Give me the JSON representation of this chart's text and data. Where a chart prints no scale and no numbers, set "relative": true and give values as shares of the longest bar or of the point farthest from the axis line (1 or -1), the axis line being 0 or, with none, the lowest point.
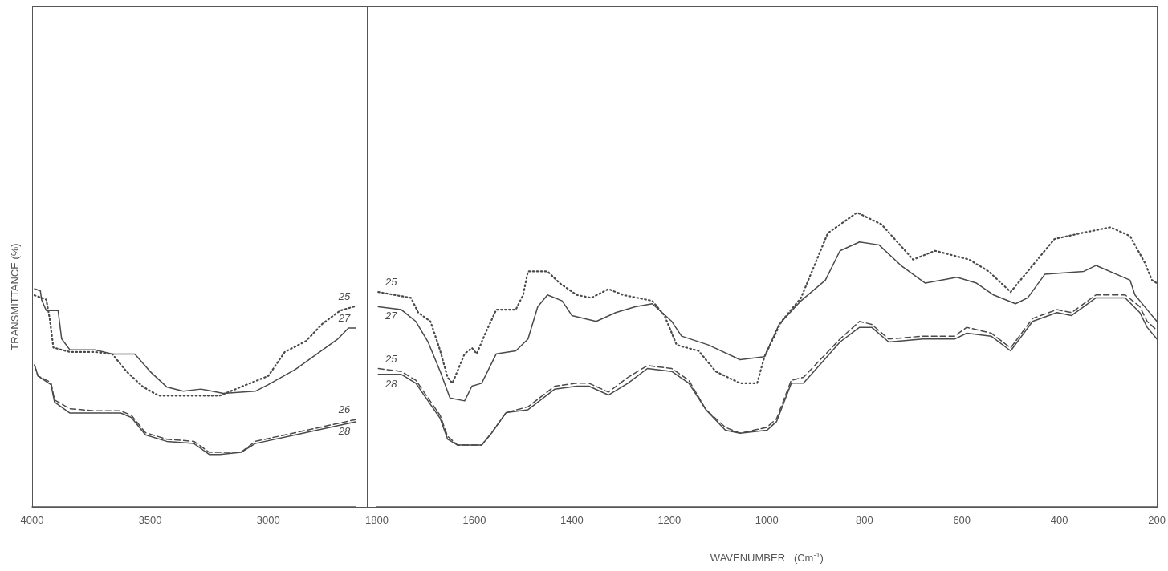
{
  "chart_data": [
    {
      "type": "line",
      "relative": true,
      "ylabel": "TRANSMITTANCE (%)",
      "xlim": [
        4000,
        2630
      ],
      "xticks": [
        4000,
        3500,
        3000
      ],
      "series": [
        {
          "name": "25",
          "color": "#4a4a4a",
          "line_style": "dotted",
          "x": [
            3990,
            3940,
            3925,
            3910,
            3840,
            3735,
            3660,
            3600,
            3530,
            3465,
            3340,
            3205,
            3115,
            3000,
            2930,
            2840,
            2770,
            2695,
            2630
          ],
          "values": [
            0.97,
            0.95,
            0.86,
            0.73,
            0.71,
            0.71,
            0.7,
            0.62,
            0.55,
            0.51,
            0.51,
            0.51,
            0.55,
            0.6,
            0.71,
            0.76,
            0.84,
            0.9,
            0.92
          ]
        },
        {
          "name": "27",
          "color": "#4a4a4a",
          "line_style": "solid",
          "x": [
            3990,
            3965,
            3960,
            3940,
            3890,
            3875,
            3840,
            3735,
            3660,
            3565,
            3500,
            3430,
            3360,
            3285,
            3190,
            3055,
            3000,
            2885,
            2795,
            2705,
            2660,
            2630
          ],
          "values": [
            1.0,
            0.99,
            0.95,
            0.9,
            0.9,
            0.77,
            0.72,
            0.72,
            0.7,
            0.7,
            0.62,
            0.55,
            0.53,
            0.54,
            0.52,
            0.53,
            0.56,
            0.63,
            0.7,
            0.77,
            0.82,
            0.82
          ]
        },
        {
          "name": "26",
          "color": "#4a4a4a",
          "line_style": "dashed",
          "x": [
            3990,
            3975,
            3920,
            3905,
            3840,
            3735,
            3625,
            3580,
            3520,
            3430,
            3315,
            3250,
            3205,
            3115,
            3055,
            2885,
            2630
          ],
          "values": [
            0.65,
            0.6,
            0.57,
            0.49,
            0.45,
            0.44,
            0.44,
            0.42,
            0.34,
            0.31,
            0.3,
            0.25,
            0.25,
            0.25,
            0.3,
            0.34,
            0.4
          ]
        },
        {
          "name": "28",
          "color": "#4a4a4a",
          "line_style": "solid",
          "x": [
            3990,
            3975,
            3920,
            3905,
            3840,
            3735,
            3625,
            3580,
            3520,
            3430,
            3315,
            3250,
            3205,
            3115,
            3055,
            2885,
            2630
          ],
          "values": [
            0.65,
            0.6,
            0.56,
            0.48,
            0.43,
            0.43,
            0.43,
            0.41,
            0.33,
            0.3,
            0.29,
            0.24,
            0.24,
            0.25,
            0.29,
            0.33,
            0.39
          ]
        }
      ]
    },
    {
      "type": "line",
      "relative": true,
      "xlabel": "WAVENUMBER   (Cm$^{-1}$)",
      "xlim": [
        1800,
        200
      ],
      "xticks": [
        1800,
        1600,
        1400,
        1200,
        1000,
        800,
        600,
        400,
        200
      ],
      "series": [
        {
          "name": "25",
          "color": "#4a4a4a",
          "line_style": "dotted",
          "x": [
            1797,
            1730,
            1715,
            1690,
            1670,
            1655,
            1645,
            1620,
            1605,
            1595,
            1580,
            1555,
            1515,
            1500,
            1490,
            1450,
            1425,
            1390,
            1360,
            1325,
            1295,
            1235,
            1210,
            1185,
            1140,
            1105,
            1055,
            1020,
            1005,
            970,
            930,
            875,
            815,
            765,
            700,
            655,
            585,
            545,
            500,
            465,
            410,
            355,
            295,
            255,
            225,
            210,
            200
          ],
          "values": [
            0.73,
            0.71,
            0.66,
            0.63,
            0.53,
            0.44,
            0.42,
            0.52,
            0.54,
            0.52,
            0.58,
            0.67,
            0.67,
            0.72,
            0.8,
            0.8,
            0.76,
            0.72,
            0.71,
            0.74,
            0.72,
            0.7,
            0.65,
            0.55,
            0.53,
            0.46,
            0.42,
            0.42,
            0.51,
            0.63,
            0.71,
            0.93,
            1.0,
            0.96,
            0.84,
            0.87,
            0.84,
            0.8,
            0.73,
            0.8,
            0.91,
            0.93,
            0.95,
            0.92,
            0.83,
            0.77,
            0.76
          ]
        },
        {
          "name": "27",
          "color": "#4a4a4a",
          "line_style": "solid",
          "x": [
            1797,
            1750,
            1720,
            1695,
            1670,
            1650,
            1620,
            1605,
            1585,
            1555,
            1515,
            1490,
            1470,
            1450,
            1420,
            1400,
            1350,
            1310,
            1270,
            1235,
            1195,
            1175,
            1120,
            1055,
            1005,
            975,
            930,
            880,
            850,
            810,
            770,
            725,
            675,
            610,
            570,
            535,
            490,
            465,
            430,
            350,
            325,
            255,
            245,
            220,
            200
          ],
          "values": [
            0.68,
            0.67,
            0.63,
            0.56,
            0.46,
            0.37,
            0.36,
            0.41,
            0.42,
            0.52,
            0.53,
            0.57,
            0.68,
            0.72,
            0.7,
            0.65,
            0.63,
            0.66,
            0.68,
            0.69,
            0.63,
            0.58,
            0.55,
            0.5,
            0.51,
            0.62,
            0.7,
            0.77,
            0.87,
            0.9,
            0.89,
            0.82,
            0.76,
            0.78,
            0.76,
            0.72,
            0.69,
            0.71,
            0.79,
            0.8,
            0.82,
            0.77,
            0.72,
            0.67,
            0.63
          ]
        },
        {
          "name": "25",
          "color": "#4a4a4a",
          "line_style": "dashed",
          "x": [
            1797,
            1750,
            1720,
            1695,
            1670,
            1655,
            1635,
            1585,
            1565,
            1535,
            1490,
            1435,
            1390,
            1365,
            1325,
            1285,
            1245,
            1195,
            1160,
            1125,
            1085,
            1055,
            1000,
            980,
            950,
            925,
            850,
            810,
            785,
            750,
            680,
            615,
            590,
            540,
            500,
            455,
            405,
            375,
            325,
            265,
            235,
            220,
            200
          ],
          "values": [
            0.47,
            0.46,
            0.43,
            0.37,
            0.31,
            0.24,
            0.21,
            0.21,
            0.25,
            0.32,
            0.34,
            0.41,
            0.42,
            0.42,
            0.39,
            0.44,
            0.48,
            0.47,
            0.43,
            0.33,
            0.27,
            0.25,
            0.27,
            0.3,
            0.43,
            0.44,
            0.57,
            0.63,
            0.62,
            0.57,
            0.58,
            0.58,
            0.61,
            0.59,
            0.54,
            0.64,
            0.67,
            0.66,
            0.72,
            0.72,
            0.68,
            0.63,
            0.6
          ]
        },
        {
          "name": "28",
          "color": "#4a4a4a",
          "line_style": "solid",
          "x": [
            1797,
            1750,
            1720,
            1695,
            1670,
            1655,
            1635,
            1585,
            1565,
            1535,
            1490,
            1435,
            1390,
            1365,
            1325,
            1285,
            1245,
            1195,
            1160,
            1125,
            1085,
            1055,
            1000,
            980,
            950,
            925,
            850,
            810,
            785,
            750,
            680,
            615,
            590,
            540,
            500,
            455,
            405,
            375,
            325,
            265,
            235,
            220,
            200
          ],
          "values": [
            0.45,
            0.45,
            0.42,
            0.36,
            0.3,
            0.23,
            0.21,
            0.21,
            0.25,
            0.32,
            0.33,
            0.4,
            0.41,
            0.41,
            0.38,
            0.42,
            0.47,
            0.46,
            0.42,
            0.33,
            0.26,
            0.25,
            0.26,
            0.29,
            0.42,
            0.42,
            0.56,
            0.61,
            0.61,
            0.56,
            0.57,
            0.57,
            0.59,
            0.58,
            0.53,
            0.63,
            0.66,
            0.65,
            0.71,
            0.71,
            0.66,
            0.61,
            0.57
          ]
        }
      ]
    }
  ]
}
